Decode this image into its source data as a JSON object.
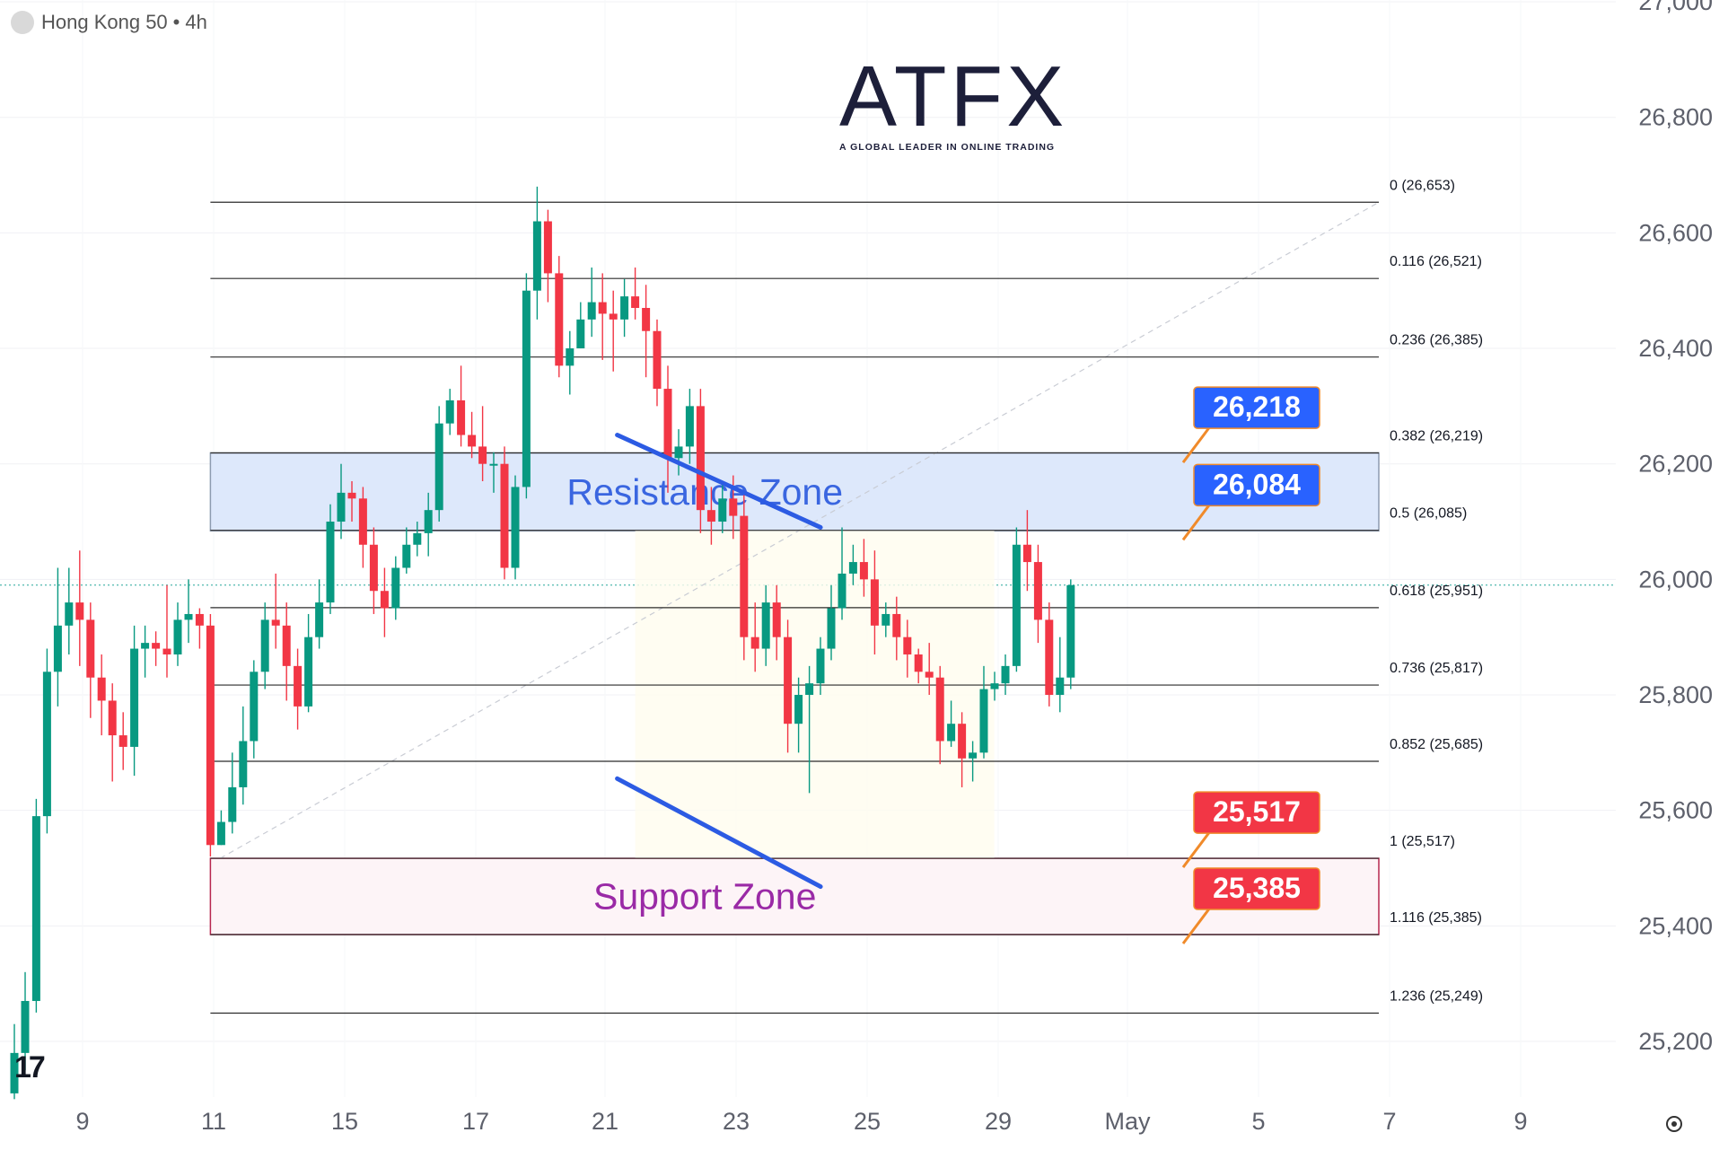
{
  "header": {
    "symbol": "Hong Kong 50",
    "separator": "•",
    "interval": "4h"
  },
  "logo": {
    "word": "ATFX",
    "tagline": "A GLOBAL LEADER IN ONLINE TRADING"
  },
  "tv_logo": "17",
  "chart_data": {
    "type": "candlestick",
    "y_axis": {
      "ticks": [
        "25,200",
        "25,400",
        "25,600",
        "25,800",
        "26,000",
        "26,200",
        "26,400",
        "26,600",
        "26,800",
        "27,000"
      ],
      "range": [
        25120,
        27000
      ]
    },
    "x_axis": {
      "ticks": [
        "9",
        "11",
        "15",
        "17",
        "21",
        "23",
        "25",
        "29",
        "May",
        "5",
        "7",
        "9"
      ]
    },
    "current_price": 25990,
    "fibonacci": [
      {
        "label": "0 (26,653)",
        "value": 26653
      },
      {
        "label": "0.116 (26,521)",
        "value": 26521
      },
      {
        "label": "0.236 (26,385)",
        "value": 26385
      },
      {
        "label": "0.382 (26,219)",
        "value": 26219
      },
      {
        "label": "0.5 (26,085)",
        "value": 26085
      },
      {
        "label": "0.618 (25,951)",
        "value": 25951
      },
      {
        "label": "0.736 (25,817)",
        "value": 25817
      },
      {
        "label": "0.852 (25,685)",
        "value": 25685
      },
      {
        "label": "1 (25,517)",
        "value": 25517
      },
      {
        "label": "1.116 (25,385)",
        "value": 25385
      },
      {
        "label": "1.236 (25,249)",
        "value": 25249
      }
    ],
    "zones": [
      {
        "name": "Resistance Zone",
        "top": 26219,
        "bottom": 26084,
        "fill": "#dde8fb",
        "stroke": "#8d9bb0",
        "text_color": "#3a66e0"
      },
      {
        "name": "Support Zone",
        "top": 25517,
        "bottom": 25385,
        "fill": "#fdf4f7",
        "stroke": "#b7264f",
        "text_color": "#9a2aa6"
      }
    ],
    "price_labels": [
      {
        "text": "26,218",
        "value": 26218,
        "color": "#2962ff"
      },
      {
        "text": "26,084",
        "value": 26084,
        "color": "#2962ff"
      },
      {
        "text": "25,517",
        "value": 25517,
        "color": "#f23645"
      },
      {
        "text": "25,385",
        "value": 25385,
        "color": "#f23645"
      }
    ],
    "channel_lines": [
      {
        "from": [
          23.0,
          26250
        ],
        "to": [
          26.2,
          26090
        ]
      },
      {
        "from": [
          23.0,
          25655
        ],
        "to": [
          26.2,
          25468
        ]
      }
    ],
    "candles": [
      [
        4.0,
        25110,
        25180,
        25100,
        25230
      ],
      [
        4.33,
        25180,
        25270,
        25150,
        25320
      ],
      [
        4.67,
        25270,
        25590,
        25250,
        25620
      ],
      [
        5.0,
        25590,
        25840,
        25560,
        25880
      ],
      [
        5.33,
        25840,
        25920,
        25780,
        26020
      ],
      [
        5.67,
        25920,
        25960,
        25870,
        26020
      ],
      [
        6.0,
        25960,
        25930,
        25850,
        26050
      ],
      [
        6.33,
        25930,
        25830,
        25760,
        25960
      ],
      [
        6.67,
        25830,
        25790,
        25730,
        25870
      ],
      [
        7.0,
        25790,
        25730,
        25650,
        25820
      ],
      [
        7.33,
        25730,
        25710,
        25670,
        25770
      ],
      [
        7.67,
        25710,
        25880,
        25660,
        25920
      ],
      [
        8.0,
        25880,
        25890,
        25830,
        25920
      ],
      [
        8.33,
        25890,
        25880,
        25850,
        25910
      ],
      [
        8.67,
        25880,
        25870,
        25830,
        25990
      ],
      [
        9.0,
        25870,
        25930,
        25850,
        25960
      ],
      [
        9.33,
        25930,
        25940,
        25890,
        26000
      ],
      [
        9.67,
        25940,
        25920,
        25880,
        25950
      ],
      [
        10.0,
        25920,
        25540,
        25520,
        25940
      ],
      [
        10.33,
        25540,
        25580,
        25540,
        25600
      ],
      [
        10.67,
        25580,
        25640,
        25560,
        25700
      ],
      [
        11.0,
        25640,
        25720,
        25610,
        25780
      ],
      [
        11.33,
        25720,
        25840,
        25690,
        25860
      ],
      [
        11.67,
        25840,
        25930,
        25810,
        25960
      ],
      [
        12.0,
        25930,
        25920,
        25880,
        26010
      ],
      [
        12.33,
        25920,
        25850,
        25790,
        25960
      ],
      [
        12.67,
        25850,
        25780,
        25740,
        25880
      ],
      [
        13.0,
        25780,
        25900,
        25770,
        25940
      ],
      [
        13.33,
        25900,
        25960,
        25880,
        26000
      ],
      [
        13.67,
        25960,
        26100,
        25940,
        26130
      ],
      [
        14.0,
        26100,
        26150,
        26070,
        26200
      ],
      [
        14.33,
        26150,
        26140,
        26100,
        26170
      ],
      [
        14.67,
        26140,
        26060,
        26020,
        26160
      ],
      [
        15.0,
        26060,
        25980,
        25940,
        26090
      ],
      [
        15.33,
        25980,
        25950,
        25900,
        26020
      ],
      [
        15.67,
        25950,
        26020,
        25930,
        26040
      ],
      [
        16.0,
        26020,
        26060,
        26010,
        26090
      ],
      [
        16.33,
        26060,
        26080,
        26040,
        26100
      ],
      [
        16.67,
        26080,
        26120,
        26040,
        26150
      ],
      [
        17.0,
        26120,
        26270,
        26100,
        26300
      ],
      [
        17.33,
        26270,
        26310,
        26250,
        26330
      ],
      [
        17.67,
        26310,
        26250,
        26230,
        26370
      ],
      [
        18.0,
        26250,
        26230,
        26210,
        26290
      ],
      [
        18.33,
        26230,
        26200,
        26170,
        26300
      ],
      [
        18.67,
        26200,
        26200,
        26150,
        26220
      ],
      [
        19.0,
        26200,
        26020,
        26000,
        26230
      ],
      [
        19.33,
        26020,
        26160,
        26000,
        26180
      ],
      [
        19.67,
        26160,
        26500,
        26140,
        26530
      ],
      [
        20.0,
        26500,
        26620,
        26450,
        26680
      ],
      [
        20.33,
        26620,
        26530,
        26480,
        26640
      ],
      [
        20.67,
        26530,
        26370,
        26350,
        26560
      ],
      [
        21.0,
        26370,
        26400,
        26320,
        26430
      ],
      [
        21.33,
        26400,
        26450,
        26400,
        26480
      ],
      [
        21.67,
        26450,
        26480,
        26420,
        26540
      ],
      [
        22.0,
        26480,
        26460,
        26380,
        26530
      ],
      [
        22.33,
        26460,
        26450,
        26360,
        26500
      ],
      [
        22.67,
        26450,
        26490,
        26420,
        26520
      ],
      [
        23.0,
        26490,
        26470,
        26450,
        26540
      ],
      [
        23.33,
        26470,
        26430,
        26350,
        26510
      ]
    ]
  }
}
